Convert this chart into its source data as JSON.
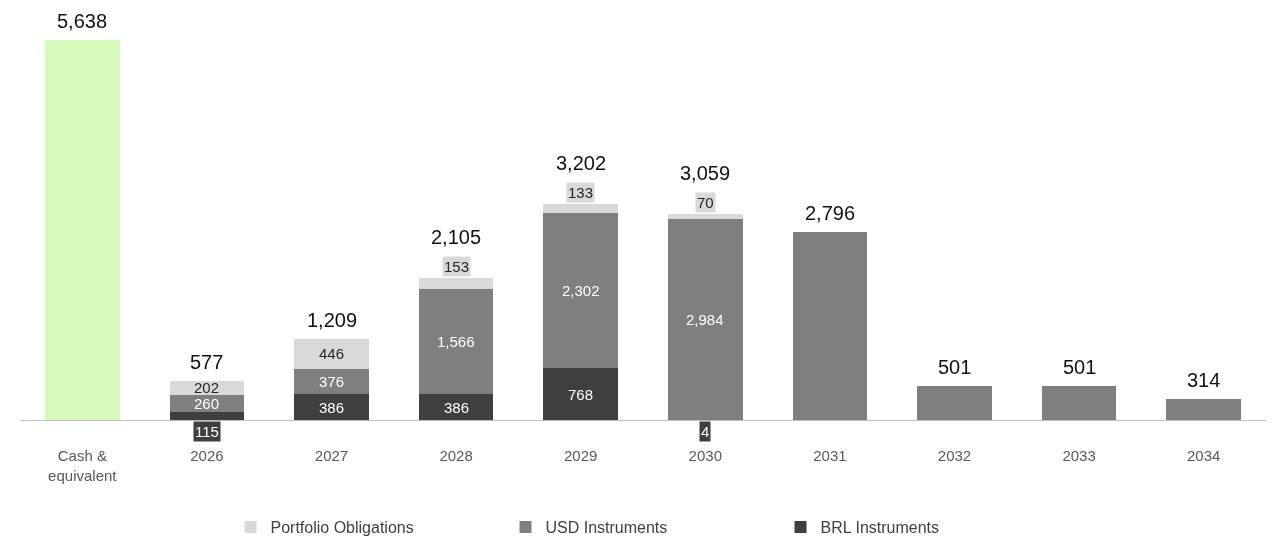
{
  "chart_data": {
    "type": "bar",
    "stacked": true,
    "categories": [
      "Cash &\nequivalent",
      "2026",
      "2027",
      "2028",
      "2029",
      "2030",
      "2031",
      "2032",
      "2033",
      "2034"
    ],
    "series": [
      {
        "color": "#d5f9b8",
        "values": [
          5638,
          null,
          null,
          null,
          null,
          null,
          null,
          null,
          null,
          null
        ],
        "value_labels": [
          null,
          null,
          null,
          null,
          null,
          null,
          null,
          null,
          null,
          null
        ]
      },
      {
        "name": "BRL Instruments",
        "color": "#3f3f3f",
        "values": [
          null,
          115,
          386,
          386,
          768,
          4,
          null,
          null,
          null,
          null
        ],
        "value_labels": [
          null,
          "115",
          "386",
          "386",
          "768",
          "4",
          null,
          null,
          null,
          null
        ]
      },
      {
        "name": "USD Instruments",
        "color": "#7f7f7f",
        "values": [
          null,
          260,
          376,
          1566,
          2302,
          2984,
          2796,
          501,
          501,
          314
        ],
        "value_labels": [
          null,
          "260",
          "376",
          "1,566",
          "2,302",
          "2,984",
          null,
          null,
          null,
          null
        ]
      },
      {
        "name": "Portfolio Obligations",
        "color": "#d9d9d9",
        "values": [
          null,
          202,
          446,
          153,
          133,
          70,
          null,
          null,
          null,
          null
        ],
        "value_labels": [
          null,
          "202",
          "446",
          "153",
          "133",
          "70",
          null,
          null,
          null,
          null
        ]
      }
    ],
    "totals": [
      "5,638",
      "577",
      "1,209",
      "2,105",
      "3,202",
      "3,059",
      "2,796",
      "501",
      "501",
      "314"
    ],
    "legend": "bottom"
  }
}
